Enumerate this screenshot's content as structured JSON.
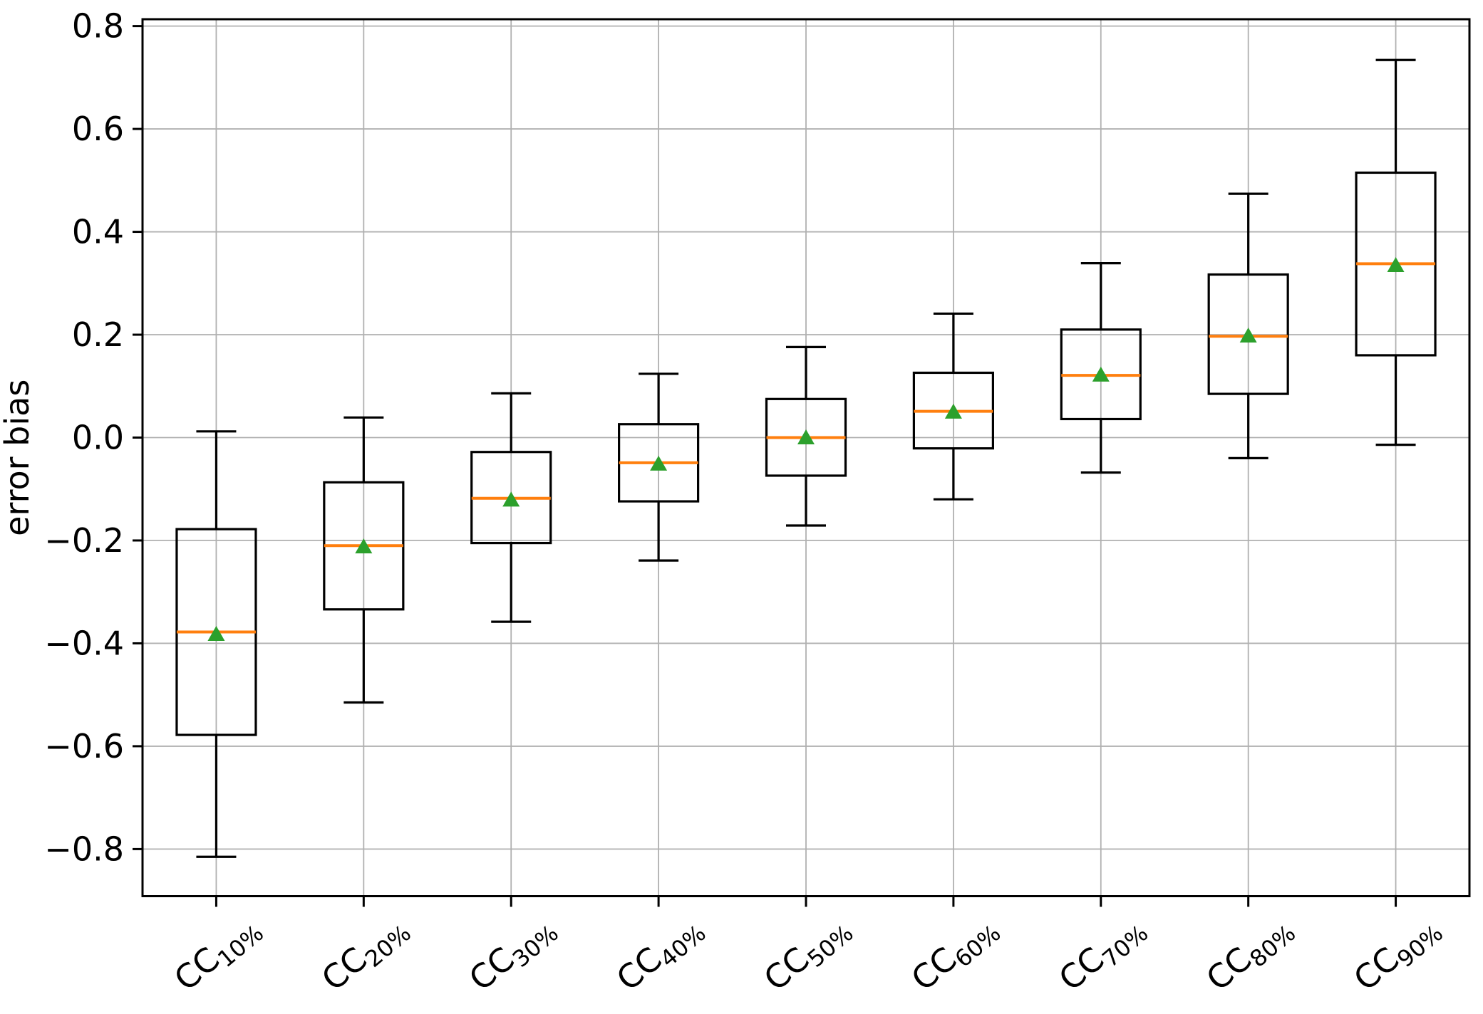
{
  "figure": {
    "background": "#ffffff"
  },
  "chart_data": {
    "type": "box",
    "title": "",
    "xlabel": "",
    "ylabel": "error bias",
    "ylim": [
      -0.8915,
      0.8133
    ],
    "yticks": [
      0.8,
      0.6,
      0.4,
      0.2,
      0.0,
      -0.2,
      -0.4,
      -0.6,
      -0.8
    ],
    "grid": true,
    "legend": "none",
    "marker": "triangle-up-mean",
    "categories": [
      {
        "prefix": "CC",
        "subscript": "10%"
      },
      {
        "prefix": "CC",
        "subscript": "20%"
      },
      {
        "prefix": "CC",
        "subscript": "30%"
      },
      {
        "prefix": "CC",
        "subscript": "40%"
      },
      {
        "prefix": "CC",
        "subscript": "50%"
      },
      {
        "prefix": "CC",
        "subscript": "60%"
      },
      {
        "prefix": "CC",
        "subscript": "70%"
      },
      {
        "prefix": "CC",
        "subscript": "80%"
      },
      {
        "prefix": "CC",
        "subscript": "90%"
      }
    ],
    "boxes": [
      {
        "category": "CC10%",
        "whisker_low": -0.815,
        "q1": -0.578,
        "median": -0.378,
        "mean": -0.382,
        "q3": -0.178,
        "whisker_high": 0.012
      },
      {
        "category": "CC20%",
        "whisker_low": -0.515,
        "q1": -0.334,
        "median": -0.21,
        "mean": -0.212,
        "q3": -0.087,
        "whisker_high": 0.039
      },
      {
        "category": "CC30%",
        "whisker_low": -0.358,
        "q1": -0.205,
        "median": -0.118,
        "mean": -0.121,
        "q3": -0.028,
        "whisker_high": 0.086
      },
      {
        "category": "CC40%",
        "whisker_low": -0.239,
        "q1": -0.124,
        "median": -0.049,
        "mean": -0.051,
        "q3": 0.026,
        "whisker_high": 0.124
      },
      {
        "category": "CC50%",
        "whisker_low": -0.171,
        "q1": -0.074,
        "median": 0.0,
        "mean": 0.0,
        "q3": 0.075,
        "whisker_high": 0.176
      },
      {
        "category": "CC60%",
        "whisker_low": -0.12,
        "q1": -0.021,
        "median": 0.051,
        "mean": 0.05,
        "q3": 0.126,
        "whisker_high": 0.241
      },
      {
        "category": "CC70%",
        "whisker_low": -0.068,
        "q1": 0.036,
        "median": 0.121,
        "mean": 0.122,
        "q3": 0.21,
        "whisker_high": 0.339
      },
      {
        "category": "CC80%",
        "whisker_low": -0.04,
        "q1": 0.085,
        "median": 0.197,
        "mean": 0.198,
        "q3": 0.317,
        "whisker_high": 0.474
      },
      {
        "category": "CC90%",
        "whisker_low": -0.014,
        "q1": 0.16,
        "median": 0.338,
        "mean": 0.335,
        "q3": 0.515,
        "whisker_high": 0.734
      }
    ],
    "colors": {
      "box": "#000000",
      "whisker": "#000000",
      "median": "#ff7f0e",
      "mean": "#2ca02c",
      "grid": "#b0b0b0",
      "axis": "#000000",
      "background": "#ffffff"
    }
  }
}
